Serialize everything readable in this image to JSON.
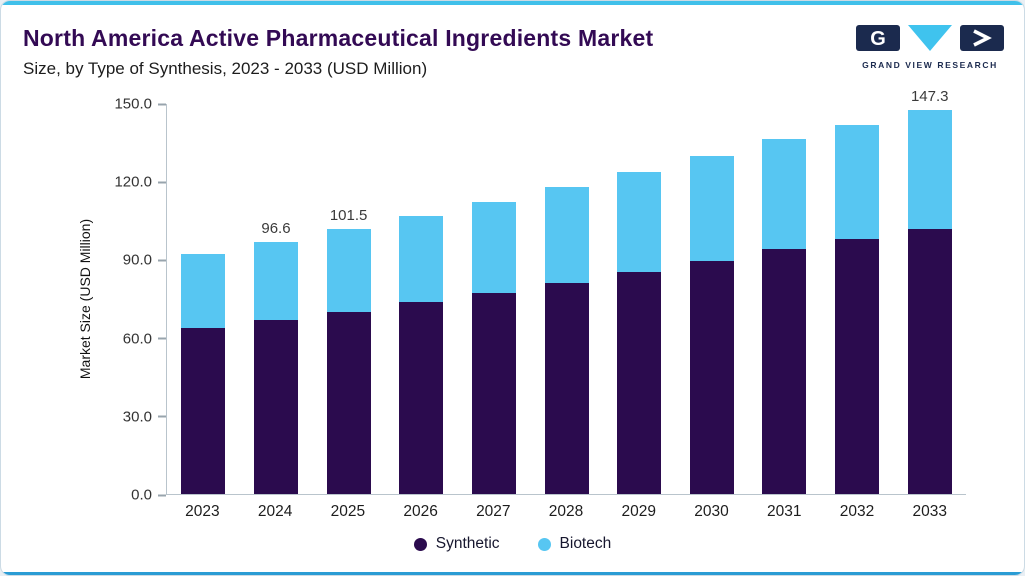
{
  "header": {
    "title": "North America Active Pharmaceutical Ingredients Market",
    "subtitle": "Size, by Type of Synthesis, 2023 - 2033 (USD Million)",
    "logo_text": "GRAND VIEW RESEARCH"
  },
  "colors": {
    "synthetic": "#2b0b4e",
    "biotech": "#57c6f2",
    "accent": "#40c0ea",
    "accent_dark": "#2a9cd4",
    "title": "#330a54",
    "logo_navy": "#1b2a4e"
  },
  "chart_data": {
    "type": "bar",
    "stacked": true,
    "title": "North America Active Pharmaceutical Ingredients Market Size, by Type of Synthesis, 2023 - 2033 (USD Million)",
    "categories": [
      "2023",
      "2024",
      "2025",
      "2026",
      "2027",
      "2028",
      "2029",
      "2030",
      "2031",
      "2032",
      "2033"
    ],
    "series": [
      {
        "name": "Synthetic",
        "values": [
          63.5,
          66.6,
          70.0,
          73.5,
          77.3,
          81.1,
          85.2,
          89.5,
          94.0,
          97.7,
          101.6
        ]
      },
      {
        "name": "Biotech",
        "values": [
          28.5,
          30.0,
          31.5,
          33.1,
          34.7,
          36.5,
          38.3,
          40.2,
          42.2,
          43.9,
          45.7
        ]
      }
    ],
    "totals": [
      92.0,
      96.6,
      101.5,
      106.6,
      112.0,
      117.6,
      123.5,
      129.7,
      136.2,
      141.6,
      147.3
    ],
    "bar_labels": [
      "",
      "96.6",
      "101.5",
      "",
      "",
      "",
      "",
      "",
      "",
      "",
      "147.3"
    ],
    "xlabel": "",
    "ylabel": "Market Size (USD Million)",
    "ylim": [
      0,
      150
    ],
    "yticks": [
      "150.0",
      "120.0",
      "90.0",
      "60.0",
      "30.0",
      "0.0"
    ],
    "gridlines": false,
    "legend": [
      "Synthetic",
      "Biotech"
    ],
    "legend_position": "bottom"
  }
}
